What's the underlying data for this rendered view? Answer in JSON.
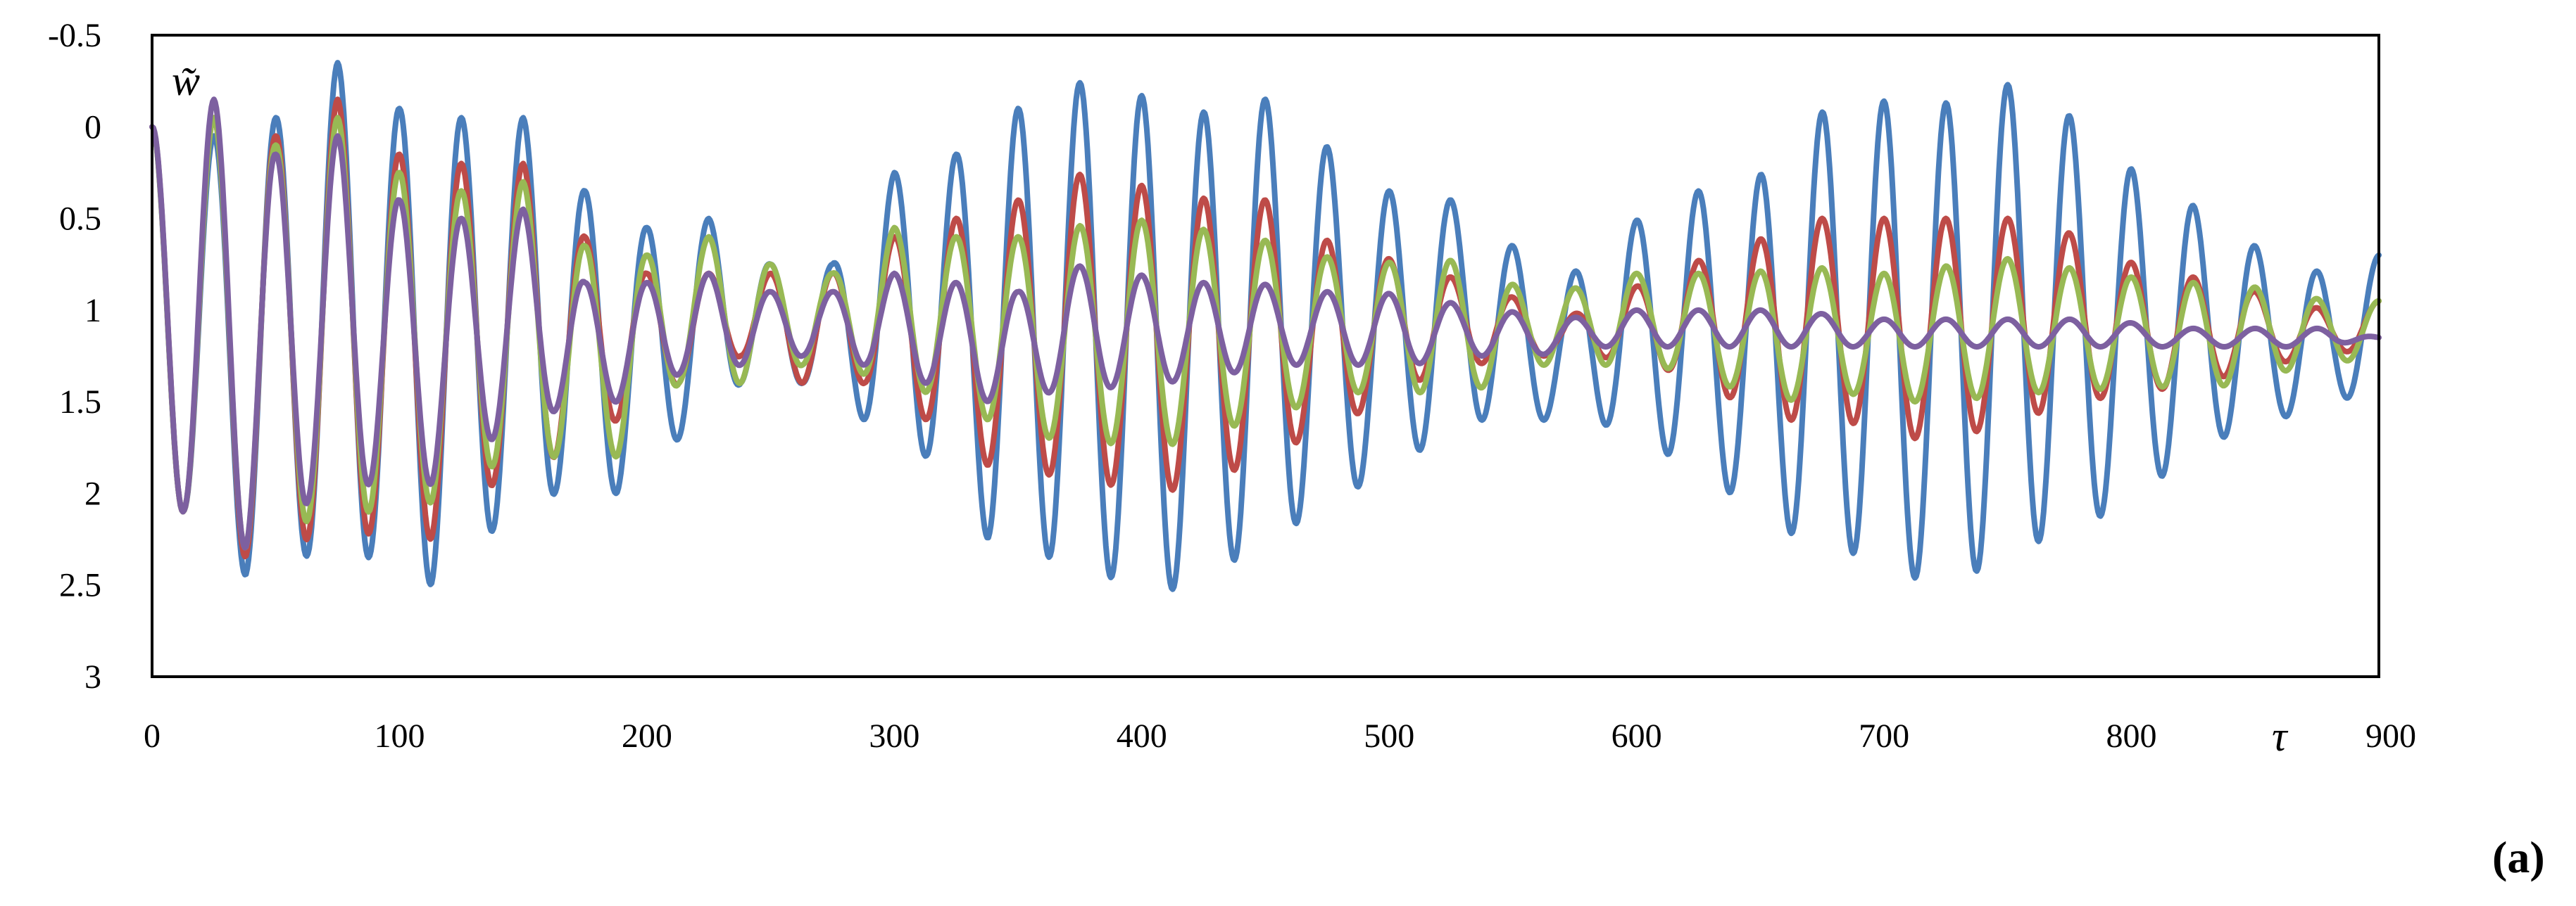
{
  "panel_label": "(a)",
  "chart_data": {
    "type": "line",
    "title": "",
    "xlabel": "τ",
    "ylabel": "w̃",
    "xlim": [
      0,
      900
    ],
    "ylim": [
      -0.5,
      3
    ],
    "y_inverted": true,
    "grid": false,
    "legend": "none",
    "x_ticks": [
      "0",
      "100",
      "200",
      "300",
      "400",
      "500",
      "600",
      "700",
      "800",
      "900"
    ],
    "x_tick_values": [
      0,
      100,
      200,
      300,
      400,
      500,
      600,
      700,
      800,
      900
    ],
    "y_ticks": [
      "-0.5",
      "0",
      "0.5",
      "1",
      "1.5",
      "2",
      "2.5",
      "3"
    ],
    "y_tick_values": [
      -0.5,
      0,
      0.5,
      1,
      1.5,
      2,
      2.5,
      3
    ],
    "series": [
      {
        "color": "#4a7ebb",
        "min_values": [
          [
            13,
            2.1
          ],
          [
            38,
            2.45
          ],
          [
            63,
            2.34
          ],
          [
            88,
            2.35
          ],
          [
            113,
            2.5
          ],
          [
            138,
            2.2
          ],
          [
            163,
            2.0
          ],
          [
            188,
            2.0
          ],
          [
            213,
            1.7
          ],
          [
            238,
            1.4
          ],
          [
            263,
            1.4
          ],
          [
            288,
            1.6
          ],
          [
            313,
            1.8
          ],
          [
            338,
            2.25
          ],
          [
            363,
            2.35
          ],
          [
            408,
            2.55
          ],
          [
            433,
            2.4
          ],
          [
            458,
            2.2
          ],
          [
            483,
            2.0
          ],
          [
            508,
            1.8
          ],
          [
            533,
            1.6
          ],
          [
            558,
            1.6
          ],
          [
            583,
            1.6
          ],
          [
            608,
            1.75
          ],
          [
            633,
            1.95
          ],
          [
            658,
            2.2
          ],
          [
            683,
            2.3
          ],
          [
            708,
            2.45
          ],
          [
            728,
            2.5
          ],
          [
            753,
            2.3
          ],
          [
            778,
            2.2
          ],
          [
            803,
            2.0
          ],
          [
            828,
            1.75
          ],
          [
            853,
            1.6
          ],
          [
            878,
            1.55
          ],
          [
            898,
            1.4
          ]
        ],
        "max_values": [
          [
            0,
            0.0
          ],
          [
            25,
            0.05
          ],
          [
            50,
            -0.05
          ],
          [
            75,
            -0.35
          ],
          [
            100,
            -0.1
          ],
          [
            125,
            -0.05
          ],
          [
            150,
            -0.05
          ],
          [
            175,
            0.35
          ],
          [
            200,
            0.55
          ],
          [
            225,
            0.5
          ],
          [
            250,
            0.75
          ],
          [
            275,
            0.75
          ],
          [
            300,
            0.25
          ],
          [
            325,
            0.15
          ],
          [
            350,
            -0.1
          ],
          [
            370,
            -0.25
          ],
          [
            395,
            -0.2
          ],
          [
            420,
            -0.05
          ],
          [
            445,
            -0.2
          ],
          [
            470,
            0.05
          ],
          [
            495,
            0.35
          ],
          [
            520,
            0.35
          ],
          [
            545,
            0.6
          ],
          [
            570,
            0.85
          ],
          [
            595,
            0.55
          ],
          [
            620,
            0.35
          ],
          [
            645,
            0.35
          ],
          [
            665,
            0.0
          ],
          [
            690,
            -0.2
          ],
          [
            715,
            -0.05
          ],
          [
            740,
            -0.25
          ],
          [
            765,
            -0.2
          ],
          [
            790,
            0.15
          ],
          [
            815,
            0.35
          ],
          [
            840,
            0.55
          ],
          [
            860,
            0.75
          ],
          [
            880,
            0.8
          ],
          [
            900,
            0.7
          ]
        ]
      },
      {
        "color": "#be4b48",
        "min_values": [
          [
            13,
            2.1
          ],
          [
            38,
            2.35
          ],
          [
            63,
            2.25
          ],
          [
            88,
            2.22
          ],
          [
            113,
            2.25
          ],
          [
            138,
            1.95
          ],
          [
            163,
            1.8
          ],
          [
            188,
            1.6
          ],
          [
            213,
            1.4
          ],
          [
            238,
            1.25
          ],
          [
            263,
            1.4
          ],
          [
            288,
            1.4
          ],
          [
            313,
            1.6
          ],
          [
            338,
            1.85
          ],
          [
            363,
            1.9
          ],
          [
            408,
            2.0
          ],
          [
            433,
            1.9
          ],
          [
            458,
            1.75
          ],
          [
            483,
            1.6
          ],
          [
            508,
            1.4
          ],
          [
            533,
            1.3
          ],
          [
            558,
            1.25
          ],
          [
            583,
            1.25
          ],
          [
            608,
            1.3
          ],
          [
            633,
            1.45
          ],
          [
            658,
            1.6
          ],
          [
            683,
            1.6
          ],
          [
            708,
            1.7
          ],
          [
            728,
            1.7
          ],
          [
            753,
            1.6
          ],
          [
            778,
            1.5
          ],
          [
            803,
            1.45
          ],
          [
            828,
            1.4
          ],
          [
            853,
            1.3
          ],
          [
            878,
            1.25
          ],
          [
            898,
            1.2
          ]
        ],
        "max_values": [
          [
            0,
            0.0
          ],
          [
            25,
            -0.05
          ],
          [
            50,
            0.05
          ],
          [
            75,
            -0.15
          ],
          [
            100,
            0.15
          ],
          [
            125,
            0.2
          ],
          [
            150,
            0.2
          ],
          [
            175,
            0.6
          ],
          [
            200,
            0.8
          ],
          [
            225,
            0.8
          ],
          [
            250,
            0.8
          ],
          [
            275,
            0.8
          ],
          [
            300,
            0.6
          ],
          [
            325,
            0.5
          ],
          [
            350,
            0.4
          ],
          [
            370,
            0.25
          ],
          [
            395,
            0.3
          ],
          [
            420,
            0.4
          ],
          [
            445,
            0.35
          ],
          [
            470,
            0.6
          ],
          [
            495,
            0.7
          ],
          [
            520,
            0.8
          ],
          [
            545,
            0.9
          ],
          [
            570,
            1.05
          ],
          [
            595,
            0.9
          ],
          [
            620,
            0.75
          ],
          [
            645,
            0.65
          ],
          [
            665,
            0.5
          ],
          [
            690,
            0.5
          ],
          [
            715,
            0.5
          ],
          [
            740,
            0.5
          ],
          [
            765,
            0.5
          ],
          [
            790,
            0.7
          ],
          [
            815,
            0.8
          ],
          [
            840,
            0.85
          ],
          [
            860,
            0.95
          ],
          [
            880,
            1.0
          ],
          [
            900,
            0.95
          ]
        ]
      },
      {
        "color": "#98b954",
        "min_values": [
          [
            13,
            2.1
          ],
          [
            38,
            2.3
          ],
          [
            63,
            2.15
          ],
          [
            88,
            2.1
          ],
          [
            113,
            2.05
          ],
          [
            138,
            1.85
          ],
          [
            163,
            1.8
          ],
          [
            188,
            1.8
          ],
          [
            213,
            1.4
          ],
          [
            238,
            1.4
          ],
          [
            263,
            1.3
          ],
          [
            288,
            1.35
          ],
          [
            313,
            1.45
          ],
          [
            338,
            1.6
          ],
          [
            363,
            1.7
          ],
          [
            408,
            1.75
          ],
          [
            433,
            1.65
          ],
          [
            458,
            1.55
          ],
          [
            483,
            1.45
          ],
          [
            508,
            1.45
          ],
          [
            533,
            1.45
          ],
          [
            558,
            1.3
          ],
          [
            583,
            1.3
          ],
          [
            608,
            1.3
          ],
          [
            633,
            1.4
          ],
          [
            658,
            1.5
          ],
          [
            683,
            1.45
          ],
          [
            708,
            1.5
          ],
          [
            728,
            1.5
          ],
          [
            753,
            1.45
          ],
          [
            778,
            1.45
          ],
          [
            803,
            1.4
          ],
          [
            828,
            1.45
          ],
          [
            853,
            1.35
          ],
          [
            878,
            1.3
          ],
          [
            898,
            1.25
          ]
        ],
        "max_values": [
          [
            0,
            0.0
          ],
          [
            25,
            -0.05
          ],
          [
            50,
            0.1
          ],
          [
            75,
            -0.05
          ],
          [
            100,
            0.25
          ],
          [
            125,
            0.35
          ],
          [
            150,
            0.3
          ],
          [
            175,
            0.65
          ],
          [
            200,
            0.7
          ],
          [
            225,
            0.6
          ],
          [
            250,
            0.75
          ],
          [
            275,
            0.8
          ],
          [
            300,
            0.55
          ],
          [
            325,
            0.6
          ],
          [
            350,
            0.6
          ],
          [
            370,
            0.55
          ],
          [
            395,
            0.5
          ],
          [
            420,
            0.55
          ],
          [
            445,
            0.6
          ],
          [
            470,
            0.7
          ],
          [
            495,
            0.75
          ],
          [
            520,
            0.7
          ],
          [
            545,
            0.85
          ],
          [
            570,
            0.9
          ],
          [
            595,
            0.8
          ],
          [
            620,
            0.8
          ],
          [
            645,
            0.8
          ],
          [
            665,
            0.75
          ],
          [
            690,
            0.8
          ],
          [
            715,
            0.8
          ],
          [
            740,
            0.7
          ],
          [
            765,
            0.75
          ],
          [
            790,
            0.8
          ],
          [
            815,
            0.85
          ],
          [
            840,
            0.85
          ],
          [
            860,
            0.9
          ],
          [
            880,
            0.95
          ],
          [
            900,
            0.95
          ]
        ]
      },
      {
        "color": "#7d60a0",
        "min_values": [
          [
            13,
            2.1
          ],
          [
            38,
            2.3
          ],
          [
            63,
            2.05
          ],
          [
            88,
            1.95
          ],
          [
            113,
            1.95
          ],
          [
            138,
            1.7
          ],
          [
            163,
            1.55
          ],
          [
            188,
            1.5
          ],
          [
            213,
            1.35
          ],
          [
            238,
            1.3
          ],
          [
            263,
            1.25
          ],
          [
            288,
            1.3
          ],
          [
            313,
            1.4
          ],
          [
            338,
            1.5
          ],
          [
            363,
            1.45
          ],
          [
            408,
            1.4
          ],
          [
            433,
            1.35
          ],
          [
            458,
            1.3
          ],
          [
            483,
            1.3
          ],
          [
            508,
            1.3
          ],
          [
            533,
            1.25
          ],
          [
            558,
            1.25
          ],
          [
            583,
            1.2
          ],
          [
            608,
            1.2
          ],
          [
            633,
            1.2
          ],
          [
            658,
            1.2
          ],
          [
            683,
            1.2
          ],
          [
            708,
            1.2
          ],
          [
            728,
            1.2
          ],
          [
            753,
            1.2
          ],
          [
            778,
            1.2
          ],
          [
            803,
            1.2
          ],
          [
            828,
            1.2
          ],
          [
            853,
            1.2
          ],
          [
            878,
            1.2
          ],
          [
            898,
            1.15
          ]
        ],
        "max_values": [
          [
            0,
            0.0
          ],
          [
            25,
            -0.15
          ],
          [
            50,
            0.15
          ],
          [
            75,
            0.05
          ],
          [
            100,
            0.4
          ],
          [
            125,
            0.5
          ],
          [
            150,
            0.45
          ],
          [
            175,
            0.85
          ],
          [
            200,
            0.85
          ],
          [
            225,
            0.8
          ],
          [
            250,
            0.9
          ],
          [
            275,
            0.9
          ],
          [
            300,
            0.8
          ],
          [
            325,
            0.85
          ],
          [
            350,
            0.9
          ],
          [
            370,
            0.75
          ],
          [
            395,
            0.8
          ],
          [
            420,
            0.85
          ],
          [
            445,
            0.85
          ],
          [
            470,
            0.9
          ],
          [
            495,
            0.9
          ],
          [
            520,
            0.95
          ],
          [
            545,
            1.0
          ],
          [
            570,
            1.05
          ],
          [
            595,
            1.0
          ],
          [
            620,
            1.0
          ],
          [
            645,
            1.0
          ],
          [
            665,
            1.0
          ],
          [
            690,
            1.05
          ],
          [
            715,
            1.05
          ],
          [
            740,
            1.05
          ],
          [
            765,
            1.05
          ],
          [
            790,
            1.05
          ],
          [
            815,
            1.1
          ],
          [
            840,
            1.1
          ],
          [
            860,
            1.1
          ],
          [
            880,
            1.1
          ],
          [
            900,
            1.15
          ]
        ]
      }
    ]
  }
}
